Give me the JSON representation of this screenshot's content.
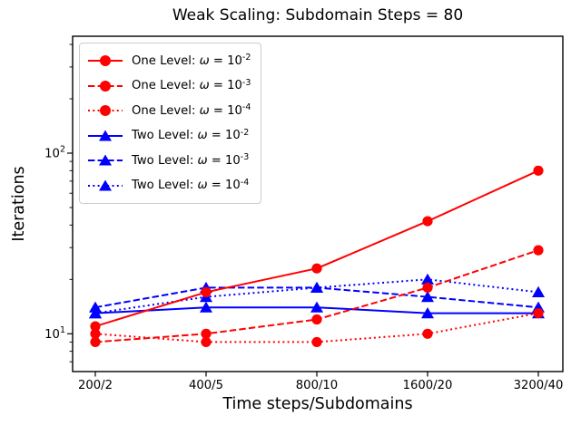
{
  "figure": {
    "title": "Weak Scaling: Subdomain Steps = 80"
  },
  "chart_data": {
    "type": "line",
    "title": "Weak Scaling: Subdomain Steps = 80",
    "xlabel": "Time steps/Subdomains",
    "ylabel": "Iterations",
    "yscale": "log",
    "ylim": [
      6.2,
      445
    ],
    "grid": false,
    "legend_position": "upper left",
    "axes_color": "#000000",
    "categories": [
      "200/2",
      "400/5",
      "800/10",
      "1600/20",
      "3200/40"
    ],
    "y_ticks": [
      {
        "value": 10,
        "label": "10¹"
      },
      {
        "value": 100,
        "label": "10²"
      }
    ],
    "y_minor_ticks": [
      7,
      8,
      9,
      20,
      30,
      40,
      50,
      60,
      70,
      80,
      90,
      200,
      300,
      400
    ],
    "series": [
      {
        "name": "One Level: ω = 10⁻²",
        "color": "#ff0000",
        "linestyle": "solid",
        "marker": "circle",
        "values": [
          11,
          17,
          23,
          42,
          80
        ]
      },
      {
        "name": "One Level: ω = 10⁻³",
        "color": "#ff0000",
        "linestyle": "dashed",
        "marker": "circle",
        "values": [
          9,
          10,
          12,
          18,
          29
        ]
      },
      {
        "name": "One Level: ω = 10⁻⁴",
        "color": "#ff0000",
        "linestyle": "dotted",
        "marker": "circle",
        "values": [
          10,
          9,
          9,
          10,
          13
        ]
      },
      {
        "name": "Two Level: ω = 10⁻²",
        "color": "#0000ff",
        "linestyle": "solid",
        "marker": "triangle",
        "values": [
          13,
          14,
          14,
          13,
          13
        ]
      },
      {
        "name": "Two Level: ω = 10⁻³",
        "color": "#0000ff",
        "linestyle": "dashed",
        "marker": "triangle",
        "values": [
          14,
          18,
          18,
          16,
          14
        ]
      },
      {
        "name": "Two Level: ω = 10⁻⁴",
        "color": "#0000ff",
        "linestyle": "dotted",
        "marker": "triangle",
        "values": [
          13,
          16,
          18,
          20,
          17
        ]
      }
    ],
    "draw_order": [
      3,
      4,
      5,
      0,
      1,
      2
    ]
  }
}
